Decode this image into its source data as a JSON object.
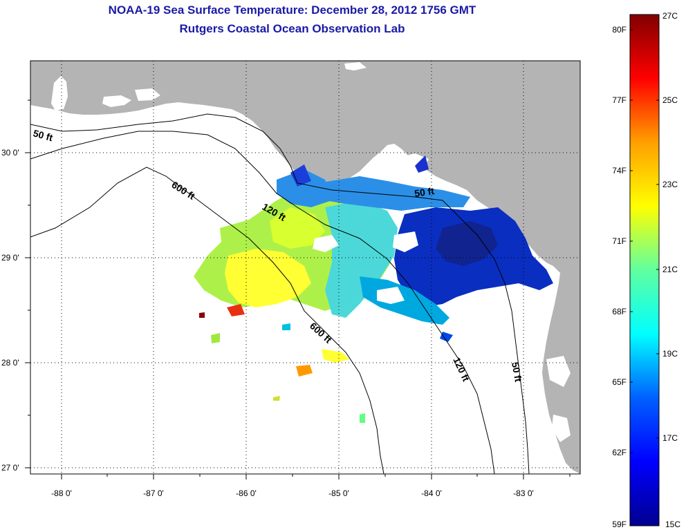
{
  "title": {
    "line1": "NOAA-19 Sea Surface Temperature:  December 28, 2012 1756 GMT",
    "line2": "Rutgers Coastal Ocean Observation Lab"
  },
  "map": {
    "lon_ticks": [
      "-88 0'",
      "-87 0'",
      "-86 0'",
      "-85 0'",
      "-84 0'",
      "-83 0'"
    ],
    "lat_ticks": [
      "30 0'",
      "29 0'",
      "28 0'",
      "27 0'"
    ],
    "contour_labels": {
      "c50_west": "50 ft",
      "c600_north": "600 ft",
      "c120_north": "120 ft",
      "c50_east": "50 ft",
      "c600_south": "600 ft",
      "c120_south": "120 ft",
      "c50_south": "50 ft"
    }
  },
  "colorbar": {
    "fahrenheit": [
      "80F",
      "77F",
      "74F",
      "71F",
      "68F",
      "65F",
      "62F",
      "59F"
    ],
    "celsius": [
      "27C",
      "25C",
      "23C",
      "21C",
      "19C",
      "17C",
      "15C"
    ]
  },
  "colors": {
    "land": "#b4b4b4",
    "title": "#1a1aa6",
    "grid": "#000000"
  }
}
